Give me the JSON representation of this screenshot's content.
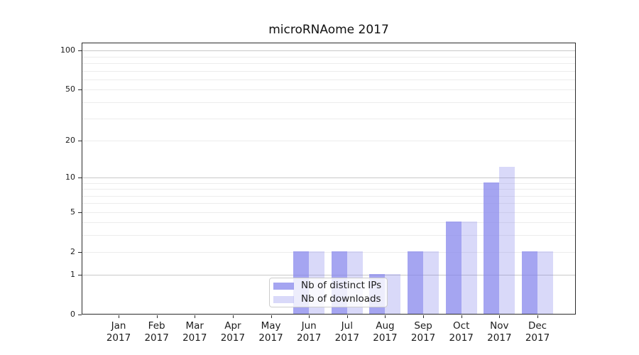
{
  "chart_data": {
    "type": "bar",
    "title": "microRNAome 2017",
    "year": "2017",
    "categories": [
      "Jan",
      "Feb",
      "Mar",
      "Apr",
      "May",
      "Jun",
      "Jul",
      "Aug",
      "Sep",
      "Oct",
      "Nov",
      "Dec"
    ],
    "series": [
      {
        "name": "Nb of distinct IPs",
        "values": [
          0,
          0,
          0,
          0,
          0,
          2,
          2,
          1,
          2,
          4,
          9,
          2
        ],
        "color": "rgba(130,130,235,0.72)"
      },
      {
        "name": "Nb of downloads",
        "values": [
          0,
          0,
          0,
          0,
          0,
          2,
          2,
          1,
          2,
          4,
          12,
          2
        ],
        "color": "rgba(130,130,235,0.30)"
      }
    ],
    "xlabel": "",
    "ylabel": "",
    "yscale": "log1p",
    "ylim": [
      0,
      115
    ],
    "yticks": [
      0,
      1,
      2,
      5,
      10,
      20,
      50,
      100
    ],
    "major_gridlines": [
      1,
      10,
      100
    ],
    "minor_gridlines": [
      2,
      3,
      4,
      5,
      6,
      7,
      8,
      9,
      20,
      30,
      40,
      50,
      60,
      70,
      80,
      90
    ],
    "grid": "on",
    "legend_position": "inside bottom-center",
    "colors": {
      "major_grid": "#c8c8c8",
      "minor_grid": "#ececec",
      "spine": "#2b2b2b",
      "text": "#1c1c1c",
      "background": "#ffffff"
    }
  }
}
